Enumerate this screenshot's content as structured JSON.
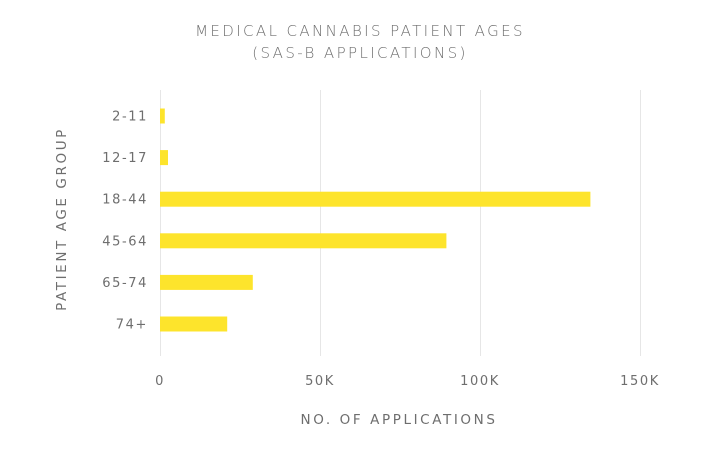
{
  "chart_data": {
    "type": "bar",
    "orientation": "horizontal",
    "title": "MEDICAL CANNABIS PATIENT AGES",
    "subtitle": "(SAS-B APPLICATIONS)",
    "xlabel": "NO. OF APPLICATIONS",
    "ylabel": "PATIENT AGE GROUP",
    "categories": [
      "2-11",
      "12-17",
      "18-44",
      "45-64",
      "65-74",
      "74+"
    ],
    "values": [
      1500,
      2500,
      134500,
      89500,
      29000,
      21000
    ],
    "xlim": [
      0,
      150000
    ],
    "xticks": [
      0,
      50000,
      100000,
      150000
    ],
    "xtick_labels": [
      "0",
      "50K",
      "100K",
      "150K"
    ],
    "bar_color": "#fde42c",
    "grid": true,
    "legend": false
  }
}
